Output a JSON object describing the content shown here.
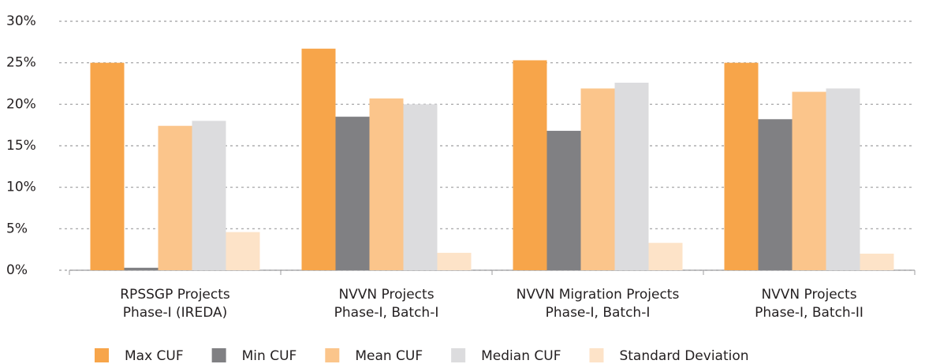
{
  "chart_data": {
    "type": "bar",
    "categories": [
      "RPSSGP Projects\nPhase-I (IREDA)",
      "NVVN Projects\nPhase-I, Batch-I",
      "NVVN Migration Projects\nPhase-I, Batch-I",
      "NVVN Projects\nPhase-I, Batch-II"
    ],
    "series": [
      {
        "name": "Max CUF",
        "color": "#f7a54a",
        "values": [
          25.0,
          26.7,
          25.3,
          25.0
        ]
      },
      {
        "name": "Min CUF",
        "color": "#808083",
        "values": [
          0.3,
          18.5,
          16.8,
          18.2
        ]
      },
      {
        "name": "Mean CUF",
        "color": "#fbc58b",
        "values": [
          17.4,
          20.7,
          21.9,
          21.5
        ]
      },
      {
        "name": "Median CUF",
        "color": "#dcdcde",
        "values": [
          18.0,
          20.0,
          22.6,
          21.9
        ]
      },
      {
        "name": "Standard Deviation",
        "color": "#fde3c8",
        "values": [
          4.6,
          2.1,
          3.3,
          2.0
        ]
      }
    ],
    "ylim": [
      0,
      30
    ],
    "yticks": [
      {
        "value": 0,
        "label": "0%"
      },
      {
        "value": 5,
        "label": "5%"
      },
      {
        "value": 10,
        "label": "10%"
      },
      {
        "value": 15,
        "label": "15%"
      },
      {
        "value": 20,
        "label": "20%"
      },
      {
        "value": 25,
        "label": "25%"
      },
      {
        "value": 30,
        "label": "30%"
      }
    ],
    "grid": true,
    "legend": "bottom"
  }
}
